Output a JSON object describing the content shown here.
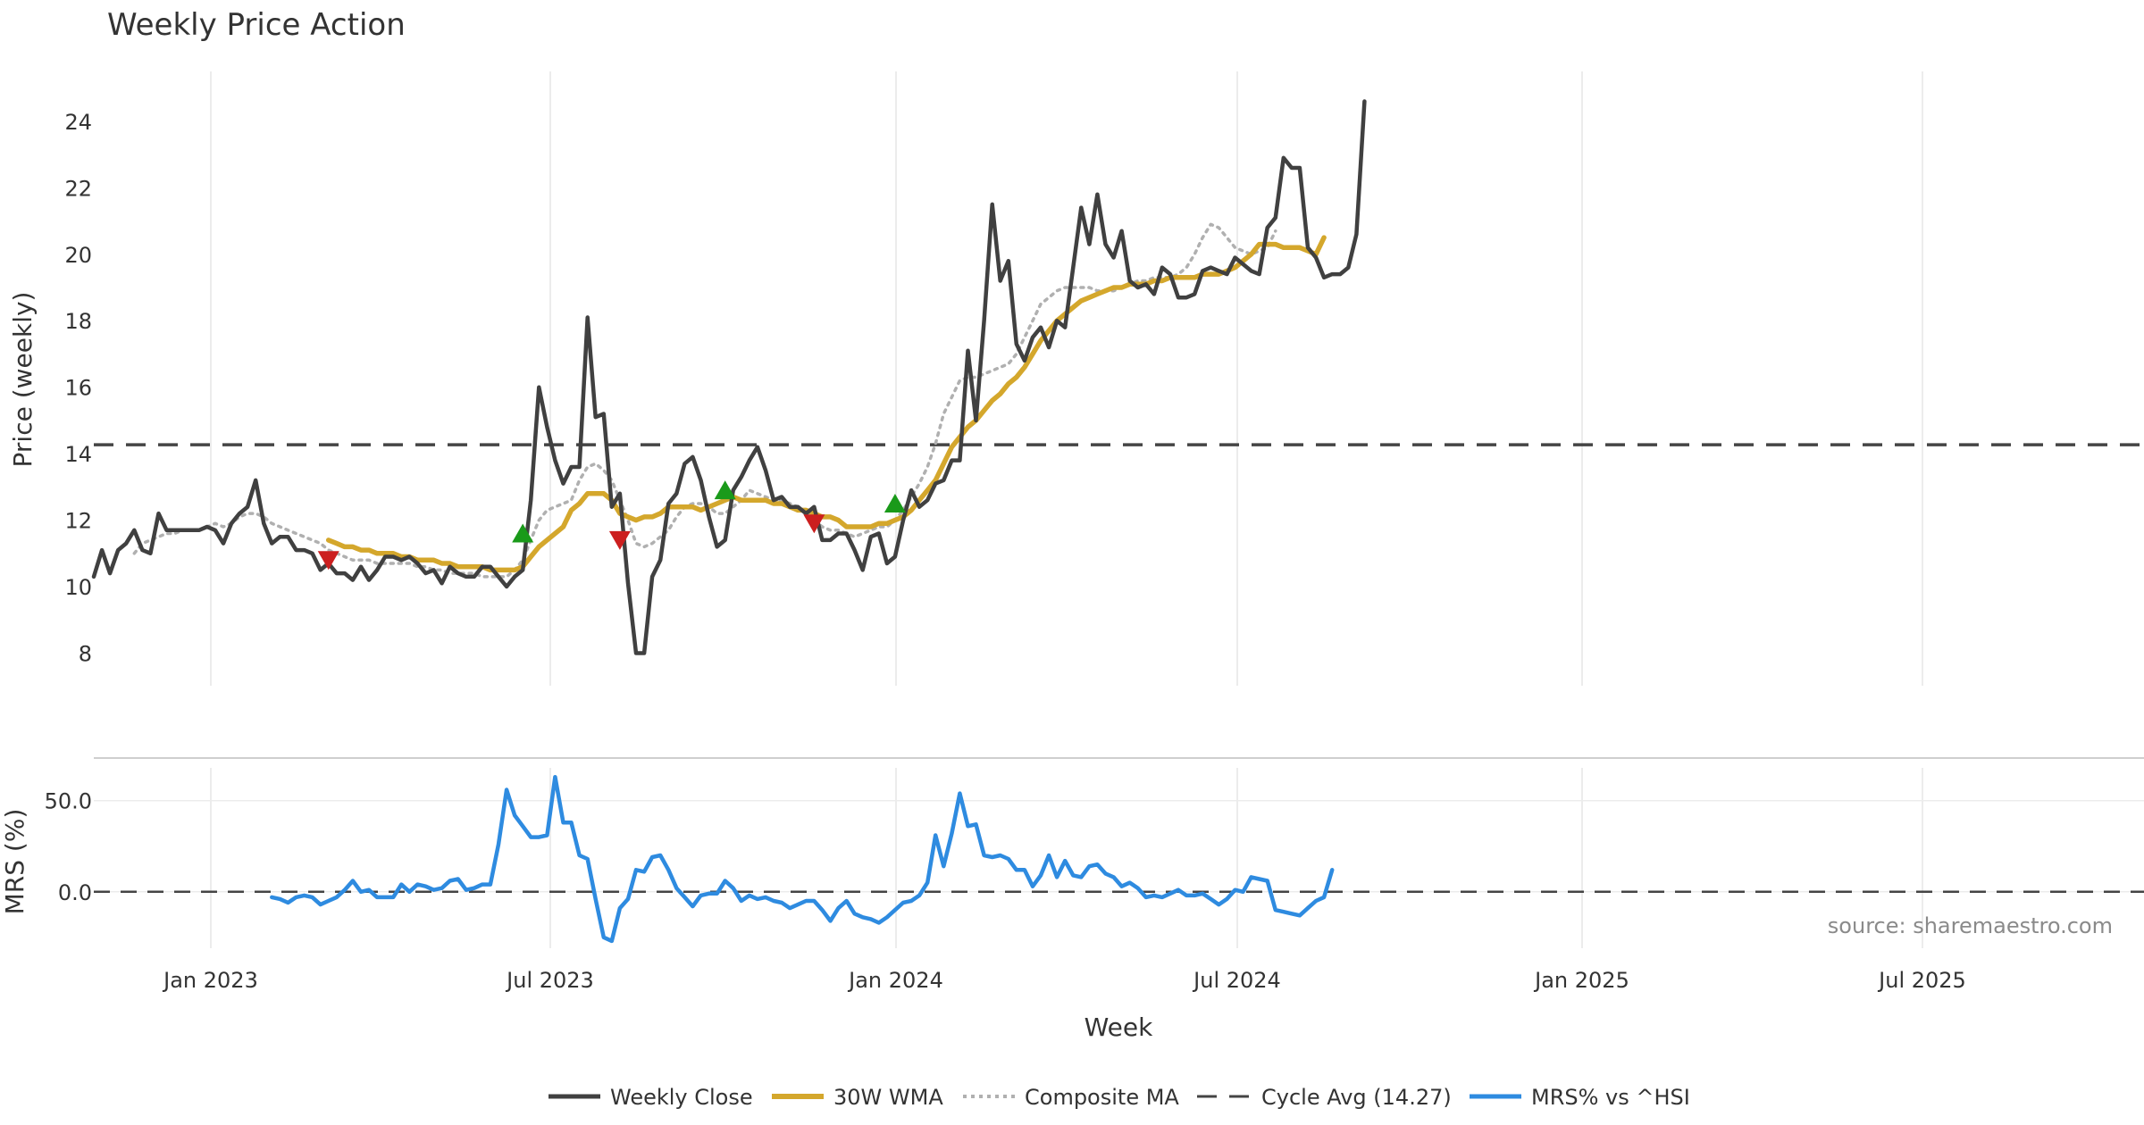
{
  "chart_data": {
    "type": "line",
    "title": "Weekly Price Action",
    "xlabel": "Week",
    "x_ticks": [
      "Jan 2023",
      "Jul 2023",
      "Jan 2024",
      "Jul 2024",
      "Jan 2025",
      "Jul 2025"
    ],
    "source": "source: sharemaestro.com",
    "price_panel": {
      "ylabel": "Price (weekly)",
      "ylim": [
        7.1,
        25.5
      ],
      "y_ticks": [
        "8",
        "10",
        "12",
        "14",
        "16",
        "18",
        "20",
        "22",
        "24"
      ],
      "cycle_avg": 14.27,
      "series": [
        {
          "name": "Weekly Close",
          "color": "#404040",
          "start_week": 0,
          "values": [
            10.3,
            11.1,
            10.4,
            11.1,
            11.3,
            11.7,
            11.1,
            11.0,
            12.2,
            11.7,
            11.7,
            11.7,
            11.7,
            11.7,
            11.8,
            11.7,
            11.3,
            11.9,
            12.2,
            12.4,
            13.2,
            11.9,
            11.3,
            11.5,
            11.5,
            11.1,
            11.1,
            11.0,
            10.5,
            10.7,
            10.4,
            10.4,
            10.2,
            10.6,
            10.2,
            10.5,
            10.9,
            10.9,
            10.8,
            10.9,
            10.7,
            10.4,
            10.5,
            10.1,
            10.6,
            10.4,
            10.3,
            10.3,
            10.6,
            10.6,
            10.3,
            10.0,
            10.3,
            10.5,
            12.6,
            16.0,
            14.8,
            13.8,
            13.1,
            13.6,
            13.6,
            18.1,
            15.1,
            15.2,
            12.4,
            12.8,
            10.1,
            8.0,
            8.0,
            10.3,
            10.8,
            12.5,
            12.8,
            13.7,
            13.9,
            13.2,
            12.1,
            11.2,
            11.4,
            12.9,
            13.3,
            13.8,
            14.2,
            13.5,
            12.6,
            12.7,
            12.4,
            12.4,
            12.2,
            12.4,
            11.4,
            11.4,
            11.6,
            11.6,
            11.1,
            10.5,
            11.5,
            11.6,
            10.7,
            10.9,
            12.0,
            12.9,
            12.4,
            12.6,
            13.1,
            13.2,
            13.8,
            13.8,
            17.1,
            15.0,
            18.0,
            21.5,
            19.2,
            19.8,
            17.3,
            16.8,
            17.5,
            17.8,
            17.2,
            18.0,
            17.8,
            19.6,
            21.4,
            20.3,
            21.8,
            20.3,
            19.9,
            20.7,
            19.2,
            19.0,
            19.1,
            18.8,
            19.6,
            19.4,
            18.7,
            18.7,
            18.8,
            19.5,
            19.6,
            19.5,
            19.4,
            19.9,
            19.7,
            19.5,
            19.4,
            20.8,
            21.1,
            22.9,
            22.6,
            22.6,
            20.2,
            19.9,
            19.3,
            19.4,
            19.4,
            19.6,
            20.6,
            24.6
          ]
        },
        {
          "name": "30W WMA",
          "color": "#d4a72c",
          "start_week": 29,
          "values": [
            11.4,
            11.3,
            11.2,
            11.2,
            11.1,
            11.1,
            11.0,
            11.0,
            11.0,
            10.9,
            10.9,
            10.8,
            10.8,
            10.8,
            10.7,
            10.7,
            10.6,
            10.6,
            10.6,
            10.6,
            10.5,
            10.5,
            10.5,
            10.5,
            10.6,
            10.9,
            11.2,
            11.4,
            11.6,
            11.8,
            12.3,
            12.5,
            12.8,
            12.8,
            12.8,
            12.6,
            12.2,
            12.1,
            12.0,
            12.1,
            12.1,
            12.2,
            12.4,
            12.4,
            12.4,
            12.4,
            12.3,
            12.4,
            12.5,
            12.6,
            12.7,
            12.6,
            12.6,
            12.6,
            12.6,
            12.5,
            12.5,
            12.4,
            12.3,
            12.3,
            12.2,
            12.1,
            12.1,
            12.0,
            11.8,
            11.8,
            11.8,
            11.8,
            11.9,
            11.9,
            12.0,
            12.1,
            12.3,
            12.6,
            12.9,
            13.2,
            13.7,
            14.2,
            14.5,
            14.8,
            15.0,
            15.3,
            15.6,
            15.8,
            16.1,
            16.3,
            16.6,
            17.0,
            17.4,
            17.7,
            18.0,
            18.2,
            18.4,
            18.6,
            18.7,
            18.8,
            18.9,
            19.0,
            19.0,
            19.1,
            19.1,
            19.1,
            19.2,
            19.2,
            19.3,
            19.3,
            19.3,
            19.3,
            19.4,
            19.4,
            19.4,
            19.5,
            19.6,
            19.8,
            20.0,
            20.3,
            20.3,
            20.3,
            20.2,
            20.2,
            20.2,
            20.1,
            20.0,
            20.5
          ]
        },
        {
          "name": "Composite MA",
          "color": "#b0b0b0",
          "start_week": 5,
          "values": [
            11.0,
            11.3,
            11.4,
            11.5,
            11.6,
            11.6,
            11.7,
            11.7,
            11.7,
            11.8,
            11.9,
            11.8,
            11.9,
            12.1,
            12.2,
            12.2,
            12.1,
            11.9,
            11.8,
            11.7,
            11.6,
            11.5,
            11.4,
            11.3,
            11.1,
            11.0,
            10.9,
            10.8,
            10.8,
            10.8,
            10.7,
            10.7,
            10.7,
            10.7,
            10.7,
            10.6,
            10.6,
            10.5,
            10.5,
            10.4,
            10.4,
            10.4,
            10.4,
            10.3,
            10.3,
            10.3,
            10.3,
            10.5,
            10.8,
            11.4,
            12.0,
            12.3,
            12.4,
            12.5,
            12.6,
            13.2,
            13.6,
            13.7,
            13.5,
            13.2,
            12.6,
            12.0,
            11.3,
            11.2,
            11.3,
            11.5,
            11.7,
            12.1,
            12.4,
            12.5,
            12.5,
            12.4,
            12.2,
            12.2,
            12.4,
            12.6,
            12.9,
            12.8,
            12.7,
            12.6,
            12.6,
            12.5,
            12.4,
            12.2,
            12.0,
            11.8,
            11.7,
            11.7,
            11.6,
            11.5,
            11.6,
            11.7,
            11.8,
            11.8,
            12.0,
            12.3,
            12.7,
            13.1,
            13.6,
            14.3,
            15.2,
            15.7,
            16.2,
            16.3,
            16.3,
            16.4,
            16.5,
            16.6,
            16.7,
            17.0,
            17.5,
            18.0,
            18.5,
            18.7,
            18.9,
            19.0,
            19.0,
            19.0,
            19.0,
            18.9,
            18.9,
            18.9,
            19.0,
            19.1,
            19.2,
            19.2,
            19.3,
            19.3,
            19.3,
            19.4,
            19.6,
            20.0,
            20.5,
            20.9,
            20.8,
            20.5,
            20.2,
            20.1,
            20.0,
            20.1,
            20.2,
            20.7
          ]
        }
      ],
      "signals": [
        {
          "type": "sell",
          "week": 29,
          "value": 10.8,
          "color": "#cc1f1f"
        },
        {
          "type": "buy",
          "week": 53,
          "value": 11.6,
          "color": "#1a9a1a"
        },
        {
          "type": "sell",
          "week": 65,
          "value": 11.4,
          "color": "#cc1f1f"
        },
        {
          "type": "buy",
          "week": 78,
          "value": 12.9,
          "color": "#1a9a1a"
        },
        {
          "type": "sell",
          "week": 89,
          "value": 11.9,
          "color": "#cc1f1f"
        },
        {
          "type": "buy",
          "week": 99,
          "value": 12.5,
          "color": "#1a9a1a"
        }
      ]
    },
    "mrs_panel": {
      "ylabel": "MRS (%)",
      "ylim": [
        -30,
        68
      ],
      "y_ticks": [
        "0.0",
        "50.0"
      ],
      "series": [
        {
          "name": "MRS% vs ^HSI",
          "color": "#2e8be0",
          "start_week": 22,
          "values": [
            -3,
            -4,
            -6,
            -3,
            -2,
            -3,
            -7,
            -5,
            -3,
            1,
            6,
            0,
            1,
            -3,
            -3,
            -3,
            4,
            0,
            4,
            3,
            1,
            2,
            6,
            7,
            1,
            2,
            4,
            4,
            26,
            56,
            42,
            36,
            30,
            30,
            31,
            63,
            38,
            38,
            20,
            18,
            -4,
            -25,
            -27,
            -9,
            -4,
            12,
            11,
            19,
            20,
            12,
            2,
            -3,
            -8,
            -2,
            -1,
            -1,
            6,
            2,
            -5,
            -2,
            -4,
            -3,
            -5,
            -6,
            -9,
            -7,
            -5,
            -5,
            -10,
            -16,
            -9,
            -5,
            -12,
            -14,
            -15,
            -17,
            -14,
            -10,
            -6,
            -5,
            -2,
            5,
            31,
            14,
            32,
            54,
            36,
            37,
            20,
            19,
            20,
            18,
            12,
            12,
            3,
            9,
            20,
            8,
            17,
            9,
            8,
            14,
            15,
            10,
            8,
            3,
            5,
            2,
            -3,
            -2,
            -3,
            -1,
            1,
            -2,
            -2,
            -1,
            -4,
            -7,
            -4,
            1,
            0,
            8,
            7,
            6,
            -10,
            -11,
            -12,
            -13,
            -9,
            -5,
            -3,
            12
          ]
        }
      ]
    },
    "legend": [
      "Weekly Close",
      "30W WMA",
      "Composite MA",
      "Cycle Avg (14.27)",
      "MRS% vs ^HSI"
    ],
    "colors": {
      "grid": "#ececec",
      "cycle_line": "#444444",
      "divider": "#cfcfcf"
    }
  }
}
